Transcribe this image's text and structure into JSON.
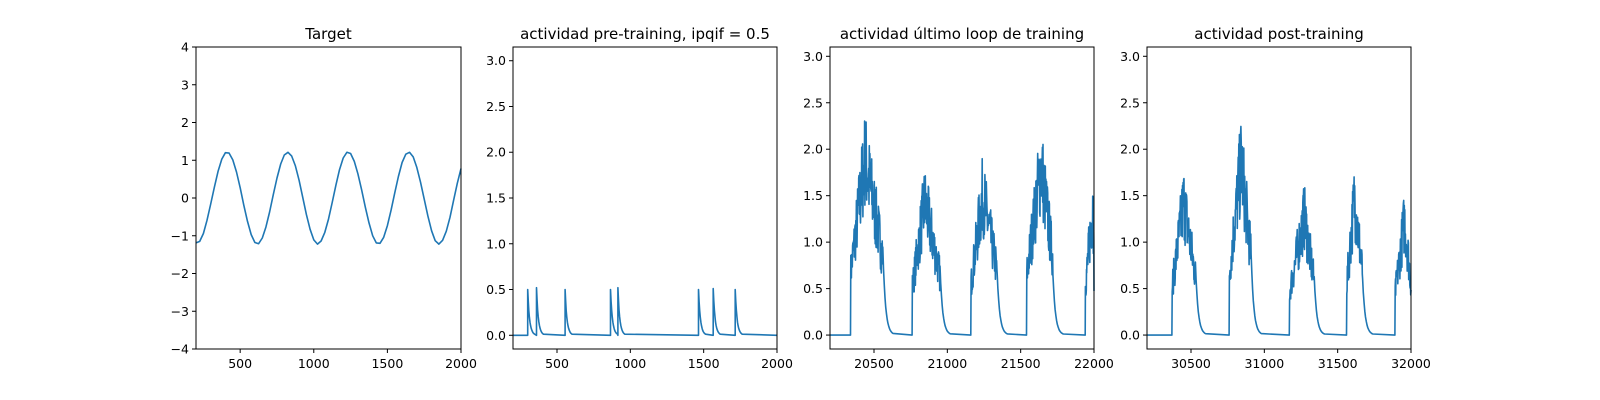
{
  "style": {
    "line_color": "#1f77b4"
  },
  "chart_data": [
    {
      "type": "line",
      "title": "Target",
      "xlim": [
        200,
        2000
      ],
      "ylim": [
        -4,
        4
      ],
      "xticks": [
        500,
        1000,
        1500,
        2000
      ],
      "yticks": [
        -4,
        -3,
        -2,
        -1,
        0,
        1,
        2,
        3,
        4
      ],
      "series": [
        {
          "x": [
            200,
            225,
            250,
            275,
            300,
            325,
            350,
            375,
            400,
            425,
            450,
            475,
            500,
            525,
            550,
            575,
            600,
            625,
            650,
            675,
            700,
            725,
            750,
            775,
            800,
            825,
            850,
            875,
            900,
            925,
            950,
            975,
            1000,
            1025,
            1050,
            1075,
            1100,
            1125,
            1150,
            1175,
            1200,
            1225,
            1250,
            1275,
            1300,
            1325,
            1350,
            1375,
            1400,
            1425,
            1450,
            1475,
            1500,
            1525,
            1550,
            1575,
            1600,
            1625,
            1650,
            1675,
            1700,
            1725,
            1750,
            1775,
            1800,
            1825,
            1850,
            1875,
            1900,
            1925,
            1950,
            1975,
            2000
          ],
          "y": [
            -1.19,
            -1.15,
            -0.94,
            -0.59,
            -0.16,
            0.29,
            0.71,
            1.03,
            1.2,
            1.19,
            1.01,
            0.69,
            0.27,
            -0.19,
            -0.62,
            -0.97,
            -1.18,
            -1.21,
            -1.06,
            -0.77,
            -0.37,
            0.09,
            0.53,
            0.9,
            1.14,
            1.21,
            1.11,
            0.85,
            0.47,
            0.02,
            -0.44,
            -0.83,
            -1.11,
            -1.22,
            -1.14,
            -0.91,
            -0.56,
            -0.12,
            0.34,
            0.75,
            1.06,
            1.21,
            1.18,
            0.97,
            0.64,
            0.22,
            -0.24,
            -0.66,
            -1.0,
            -1.19,
            -1.2,
            -1.04,
            -0.73,
            -0.32,
            0.14,
            0.57,
            0.94,
            1.16,
            1.21,
            1.09,
            0.81,
            0.42,
            -0.03,
            -0.48,
            -0.87,
            -1.13,
            -1.22,
            -1.12,
            -0.88,
            -0.51,
            -0.06,
            0.39,
            0.78
          ]
        }
      ]
    },
    {
      "type": "line",
      "title": "actividad pre-training, ipqif = 0.5",
      "xlim": [
        200,
        2000
      ],
      "ylim": [
        -0.15,
        3.15
      ],
      "xticks": [
        500,
        1000,
        1500,
        2000
      ],
      "yticks": [
        0.0,
        0.5,
        1.0,
        1.5,
        2.0,
        2.5,
        3.0
      ],
      "baseline": 0,
      "spikes": [
        {
          "t": 300,
          "h": 0.5
        },
        {
          "t": 360,
          "h": 0.52
        },
        {
          "t": 555,
          "h": 0.5
        },
        {
          "t": 865,
          "h": 0.5
        },
        {
          "t": 915,
          "h": 0.52
        },
        {
          "t": 1465,
          "h": 0.5
        },
        {
          "t": 1565,
          "h": 0.51
        },
        {
          "t": 1715,
          "h": 0.5
        }
      ]
    },
    {
      "type": "line",
      "title": "actividad último loop de training",
      "xlim": [
        20200,
        22000
      ],
      "ylim": [
        -0.15,
        3.1
      ],
      "xticks": [
        20500,
        21000,
        21500,
        22000
      ],
      "yticks": [
        0.0,
        0.5,
        1.0,
        1.5,
        2.0,
        2.5,
        3.0
      ],
      "baseline": 0,
      "bursts": [
        {
          "start": 20340,
          "end": 20560,
          "peak": 2.45,
          "peak_at": 0.45
        },
        {
          "start": 20760,
          "end": 20950,
          "peak": 1.85,
          "peak_at": 0.45
        },
        {
          "start": 21160,
          "end": 21340,
          "peak": 1.95,
          "peak_at": 0.45
        },
        {
          "start": 21540,
          "end": 21720,
          "peak": 2.35,
          "peak_at": 0.55
        },
        {
          "start": 21940,
          "end": 22000,
          "peak": 1.85,
          "peak_at": 0.9
        }
      ]
    },
    {
      "type": "line",
      "title": "actividad post-training",
      "xlim": [
        30200,
        32000
      ],
      "ylim": [
        -0.15,
        3.1
      ],
      "xticks": [
        30500,
        31000,
        31500,
        32000
      ],
      "yticks": [
        0.0,
        0.5,
        1.0,
        1.5,
        2.0,
        2.5,
        3.0
      ],
      "baseline": 0,
      "bursts": [
        {
          "start": 30370,
          "end": 30530,
          "peak": 1.85,
          "peak_at": 0.5
        },
        {
          "start": 30760,
          "end": 30910,
          "peak": 2.4,
          "peak_at": 0.55
        },
        {
          "start": 31170,
          "end": 31340,
          "peak": 1.65,
          "peak_at": 0.6
        },
        {
          "start": 31560,
          "end": 31670,
          "peak": 1.9,
          "peak_at": 0.5
        },
        {
          "start": 31890,
          "end": 32000,
          "peak": 1.6,
          "peak_at": 0.6
        }
      ]
    }
  ]
}
